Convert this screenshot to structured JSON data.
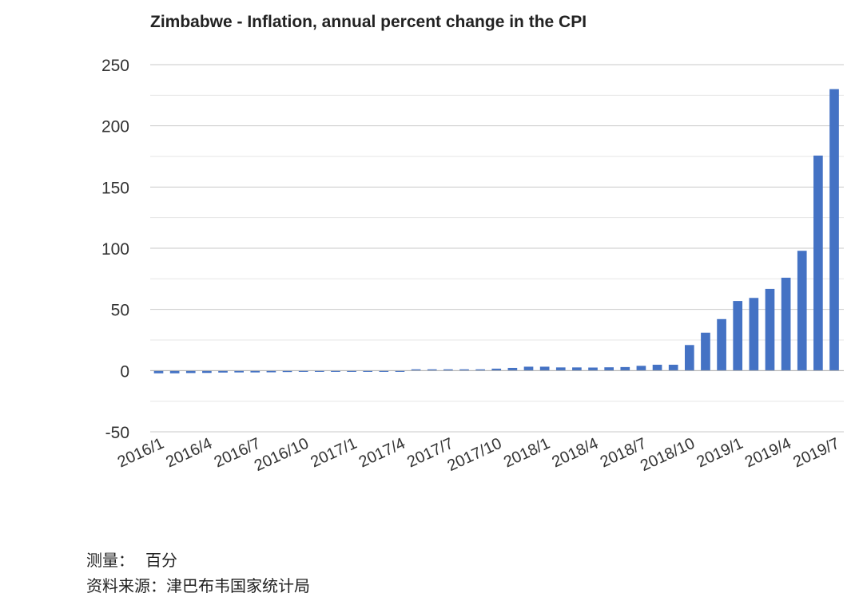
{
  "chart_data": {
    "type": "bar",
    "title": "Zimbabwe - Inflation, annual percent change in the CPI",
    "xlabel": "",
    "ylabel": "",
    "ylim": [
      -50,
      250
    ],
    "yticks": [
      -50,
      0,
      50,
      100,
      150,
      200,
      250
    ],
    "grid": true,
    "bar_color": "#4472c4",
    "x_tick_labels": [
      "2016/1",
      "2016/4",
      "2016/7",
      "2016/10",
      "2017/1",
      "2017/4",
      "2017/7",
      "2017/10",
      "2018/1",
      "2018/4",
      "2018/7",
      "2018/10",
      "2019/1",
      "2019/4",
      "2019/7"
    ],
    "categories": [
      "2016/1",
      "2016/2",
      "2016/3",
      "2016/4",
      "2016/5",
      "2016/6",
      "2016/7",
      "2016/8",
      "2016/9",
      "2016/10",
      "2016/11",
      "2016/12",
      "2017/1",
      "2017/2",
      "2017/3",
      "2017/4",
      "2017/5",
      "2017/6",
      "2017/7",
      "2017/8",
      "2017/9",
      "2017/10",
      "2017/11",
      "2017/12",
      "2018/1",
      "2018/2",
      "2018/3",
      "2018/4",
      "2018/5",
      "2018/6",
      "2018/7",
      "2018/8",
      "2018/9",
      "2018/10",
      "2018/11",
      "2018/12",
      "2019/1",
      "2019/2",
      "2019/3",
      "2019/4",
      "2019/5",
      "2019/6",
      "2019/7"
    ],
    "values": [
      -2.2,
      -2.2,
      -2.0,
      -1.9,
      -1.6,
      -1.5,
      -1.5,
      -1.4,
      -1.2,
      -1.0,
      -0.9,
      -0.8,
      -0.5,
      -0.4,
      -0.3,
      -0.2,
      0.0,
      0.1,
      0.1,
      0.3,
      0.6,
      1.6,
      2.2,
      3.2,
      3.2,
      2.6,
      2.6,
      2.5,
      2.7,
      2.9,
      3.9,
      4.8,
      4.8,
      20.9,
      31.0,
      42.1,
      56.9,
      59.4,
      66.8,
      75.9,
      97.9,
      175.7,
      230.0
    ]
  },
  "footer": {
    "measure_label": "测量：",
    "measure_value": "百分",
    "source_label": "资料来源：",
    "source_value": "津巴布韦国家统计局"
  }
}
